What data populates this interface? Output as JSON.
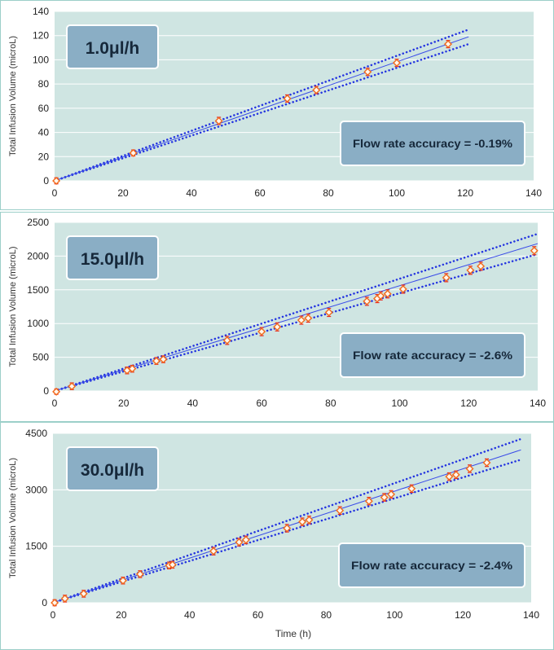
{
  "colors": {
    "plot_background": "#cfe5e2",
    "panel_border": "#9ccfc9",
    "fit_line": "#3a4be8",
    "bound_line": "#2434e0",
    "marker": "#f26a1b",
    "error_bar": "#e8251b",
    "label_box": "#8aaec5",
    "label_box_border": "#ffffff",
    "label_text": "#16283a",
    "grid": "#ffffff"
  },
  "x_axis_label": "Time (h)",
  "chart_data": [
    {
      "type": "scatter",
      "rate_label": "1.0μl/h",
      "accuracy_label": "Flow rate accuracy = -0.19%",
      "ylabel": "Total Infusion Volume (microL)",
      "xlim": [
        0,
        140
      ],
      "ylim": [
        0,
        140
      ],
      "x_ticks": [
        0,
        20,
        40,
        60,
        80,
        100,
        120,
        140
      ],
      "y_ticks": [
        0,
        20,
        40,
        60,
        80,
        100,
        120,
        140
      ],
      "grid": true,
      "fit_line": {
        "x": [
          0,
          121
        ],
        "y": [
          0,
          119
        ]
      },
      "upper_bound": {
        "x": [
          0,
          121
        ],
        "y": [
          0,
          125
        ]
      },
      "lower_bound": {
        "x": [
          0,
          121
        ],
        "y": [
          0,
          113
        ]
      },
      "points": {
        "x": [
          0.5,
          23,
          48,
          68,
          76.5,
          91.5,
          100,
          115
        ],
        "y": [
          0,
          23,
          49.5,
          68,
          75,
          90,
          97.5,
          113
        ],
        "err": [
          2.5,
          2.5,
          3,
          3,
          3,
          3,
          3,
          3
        ]
      }
    },
    {
      "type": "scatter",
      "rate_label": "15.0μl/h",
      "accuracy_label": "Flow rate accuracy = -2.6%",
      "ylabel": "Total Infusion Volume (microL)",
      "xlim": [
        0,
        140
      ],
      "ylim": [
        0,
        2500
      ],
      "x_ticks": [
        0,
        20,
        40,
        60,
        80,
        100,
        120,
        140
      ],
      "y_ticks": [
        0,
        500,
        1000,
        1500,
        2000,
        2500
      ],
      "grid": true,
      "fit_line": {
        "x": [
          0,
          140
        ],
        "y": [
          0,
          2185
        ]
      },
      "upper_bound": {
        "x": [
          0,
          140
        ],
        "y": [
          0,
          2330
        ]
      },
      "lower_bound": {
        "x": [
          0,
          140
        ],
        "y": [
          0,
          2030
        ]
      },
      "points": {
        "x": [
          0.5,
          5,
          21,
          22.5,
          29.5,
          31.5,
          50,
          60,
          64.5,
          71.5,
          73.5,
          79.5,
          90.5,
          93.5,
          94.5,
          96.5,
          101,
          113.5,
          120.5,
          123.5,
          139
        ],
        "y": [
          -10,
          70,
          305,
          330,
          445,
          470,
          750,
          880,
          950,
          1050,
          1080,
          1165,
          1330,
          1370,
          1410,
          1440,
          1510,
          1680,
          1790,
          1850,
          2080
        ],
        "err": [
          40,
          50,
          50,
          50,
          50,
          50,
          60,
          60,
          60,
          60,
          60,
          60,
          60,
          60,
          60,
          60,
          60,
          60,
          60,
          60,
          60
        ]
      }
    },
    {
      "type": "scatter",
      "rate_label": "30.0μl/h",
      "accuracy_label": "Flow rate accuracy = -2.4%",
      "ylabel": "Total Infusion Volume (microL)",
      "xlabel": "Time (h)",
      "xlim": [
        0,
        140
      ],
      "ylim": [
        0,
        4500
      ],
      "x_ticks": [
        0,
        20,
        40,
        60,
        80,
        100,
        120,
        140
      ],
      "y_ticks": [
        0,
        1500,
        3000,
        4500
      ],
      "grid": true,
      "fit_line": {
        "x": [
          0,
          137
        ],
        "y": [
          0,
          4060
        ]
      },
      "upper_bound": {
        "x": [
          0,
          137
        ],
        "y": [
          0,
          4350
        ]
      },
      "lower_bound": {
        "x": [
          0,
          137
        ],
        "y": [
          0,
          3800
        ]
      },
      "points": {
        "x": [
          0.5,
          3.5,
          9,
          20.5,
          25.5,
          34,
          35,
          47,
          54.5,
          56.5,
          68.5,
          73,
          75,
          84,
          92.5,
          97,
          99,
          105,
          116,
          118,
          122,
          127
        ],
        "y": [
          0,
          110,
          240,
          590,
          760,
          990,
          1010,
          1370,
          1610,
          1670,
          1980,
          2150,
          2200,
          2450,
          2700,
          2800,
          2880,
          3030,
          3350,
          3400,
          3560,
          3720
        ],
        "err": [
          80,
          90,
          90,
          90,
          90,
          90,
          90,
          100,
          100,
          100,
          100,
          100,
          100,
          100,
          100,
          100,
          100,
          100,
          100,
          100,
          100,
          100
        ]
      }
    }
  ]
}
